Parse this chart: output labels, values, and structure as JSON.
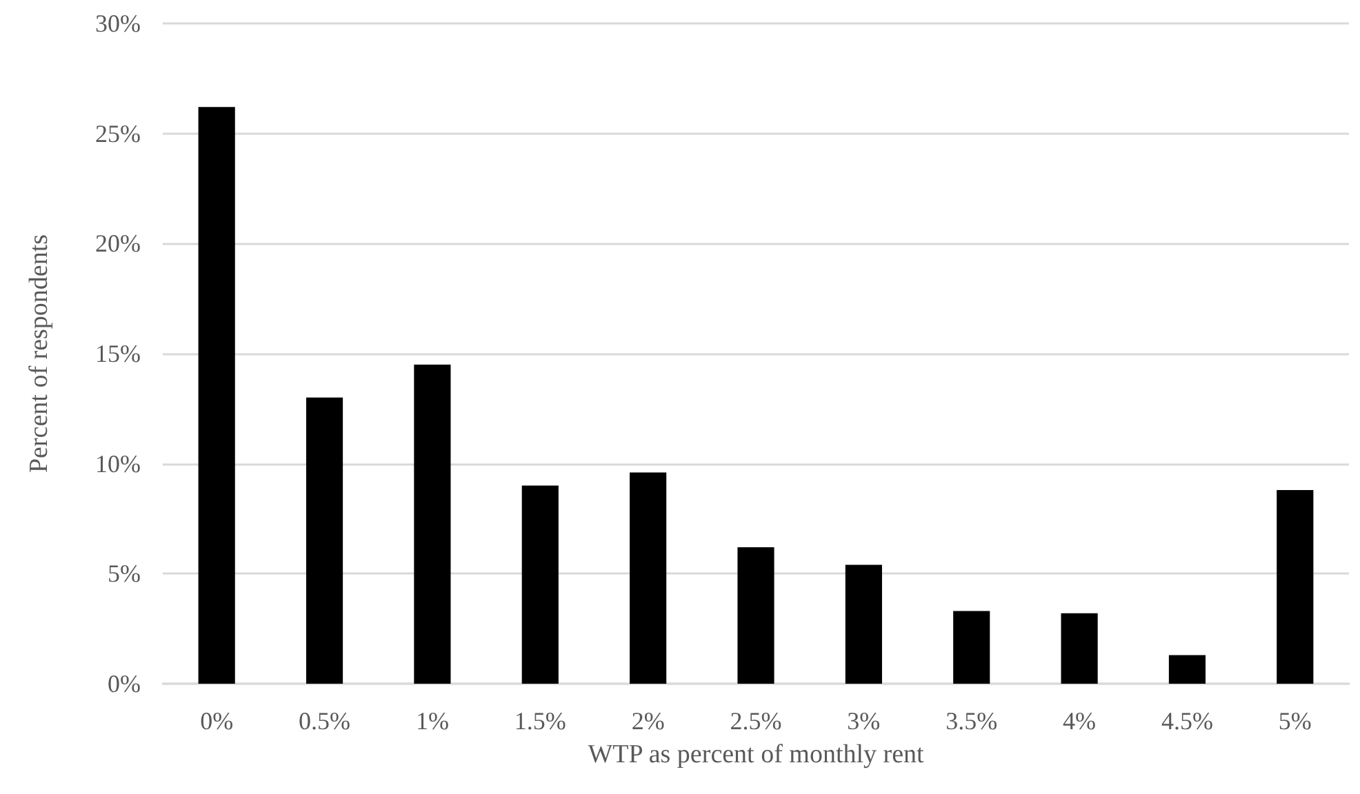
{
  "chart_data": {
    "type": "bar",
    "xlabel": "WTP as percent of monthly rent",
    "ylabel": "Percent of respondents",
    "categories": [
      "0%",
      "0.5%",
      "1%",
      "1.5%",
      "2%",
      "2.5%",
      "3%",
      "3.5%",
      "4%",
      "4.5%",
      "5%"
    ],
    "values": [
      26.2,
      13.0,
      14.5,
      9.0,
      9.6,
      6.2,
      5.4,
      3.3,
      3.2,
      1.3,
      8.8
    ],
    "color": "#000000",
    "ylim": [
      0,
      30
    ],
    "yticks": [
      {
        "value": 0,
        "label": "0%"
      },
      {
        "value": 5,
        "label": "5%"
      },
      {
        "value": 10,
        "label": "10%"
      },
      {
        "value": 15,
        "label": "15%"
      },
      {
        "value": 20,
        "label": "20%"
      },
      {
        "value": 25,
        "label": "25%"
      },
      {
        "value": 30,
        "label": "30%"
      }
    ],
    "grid": "y"
  }
}
